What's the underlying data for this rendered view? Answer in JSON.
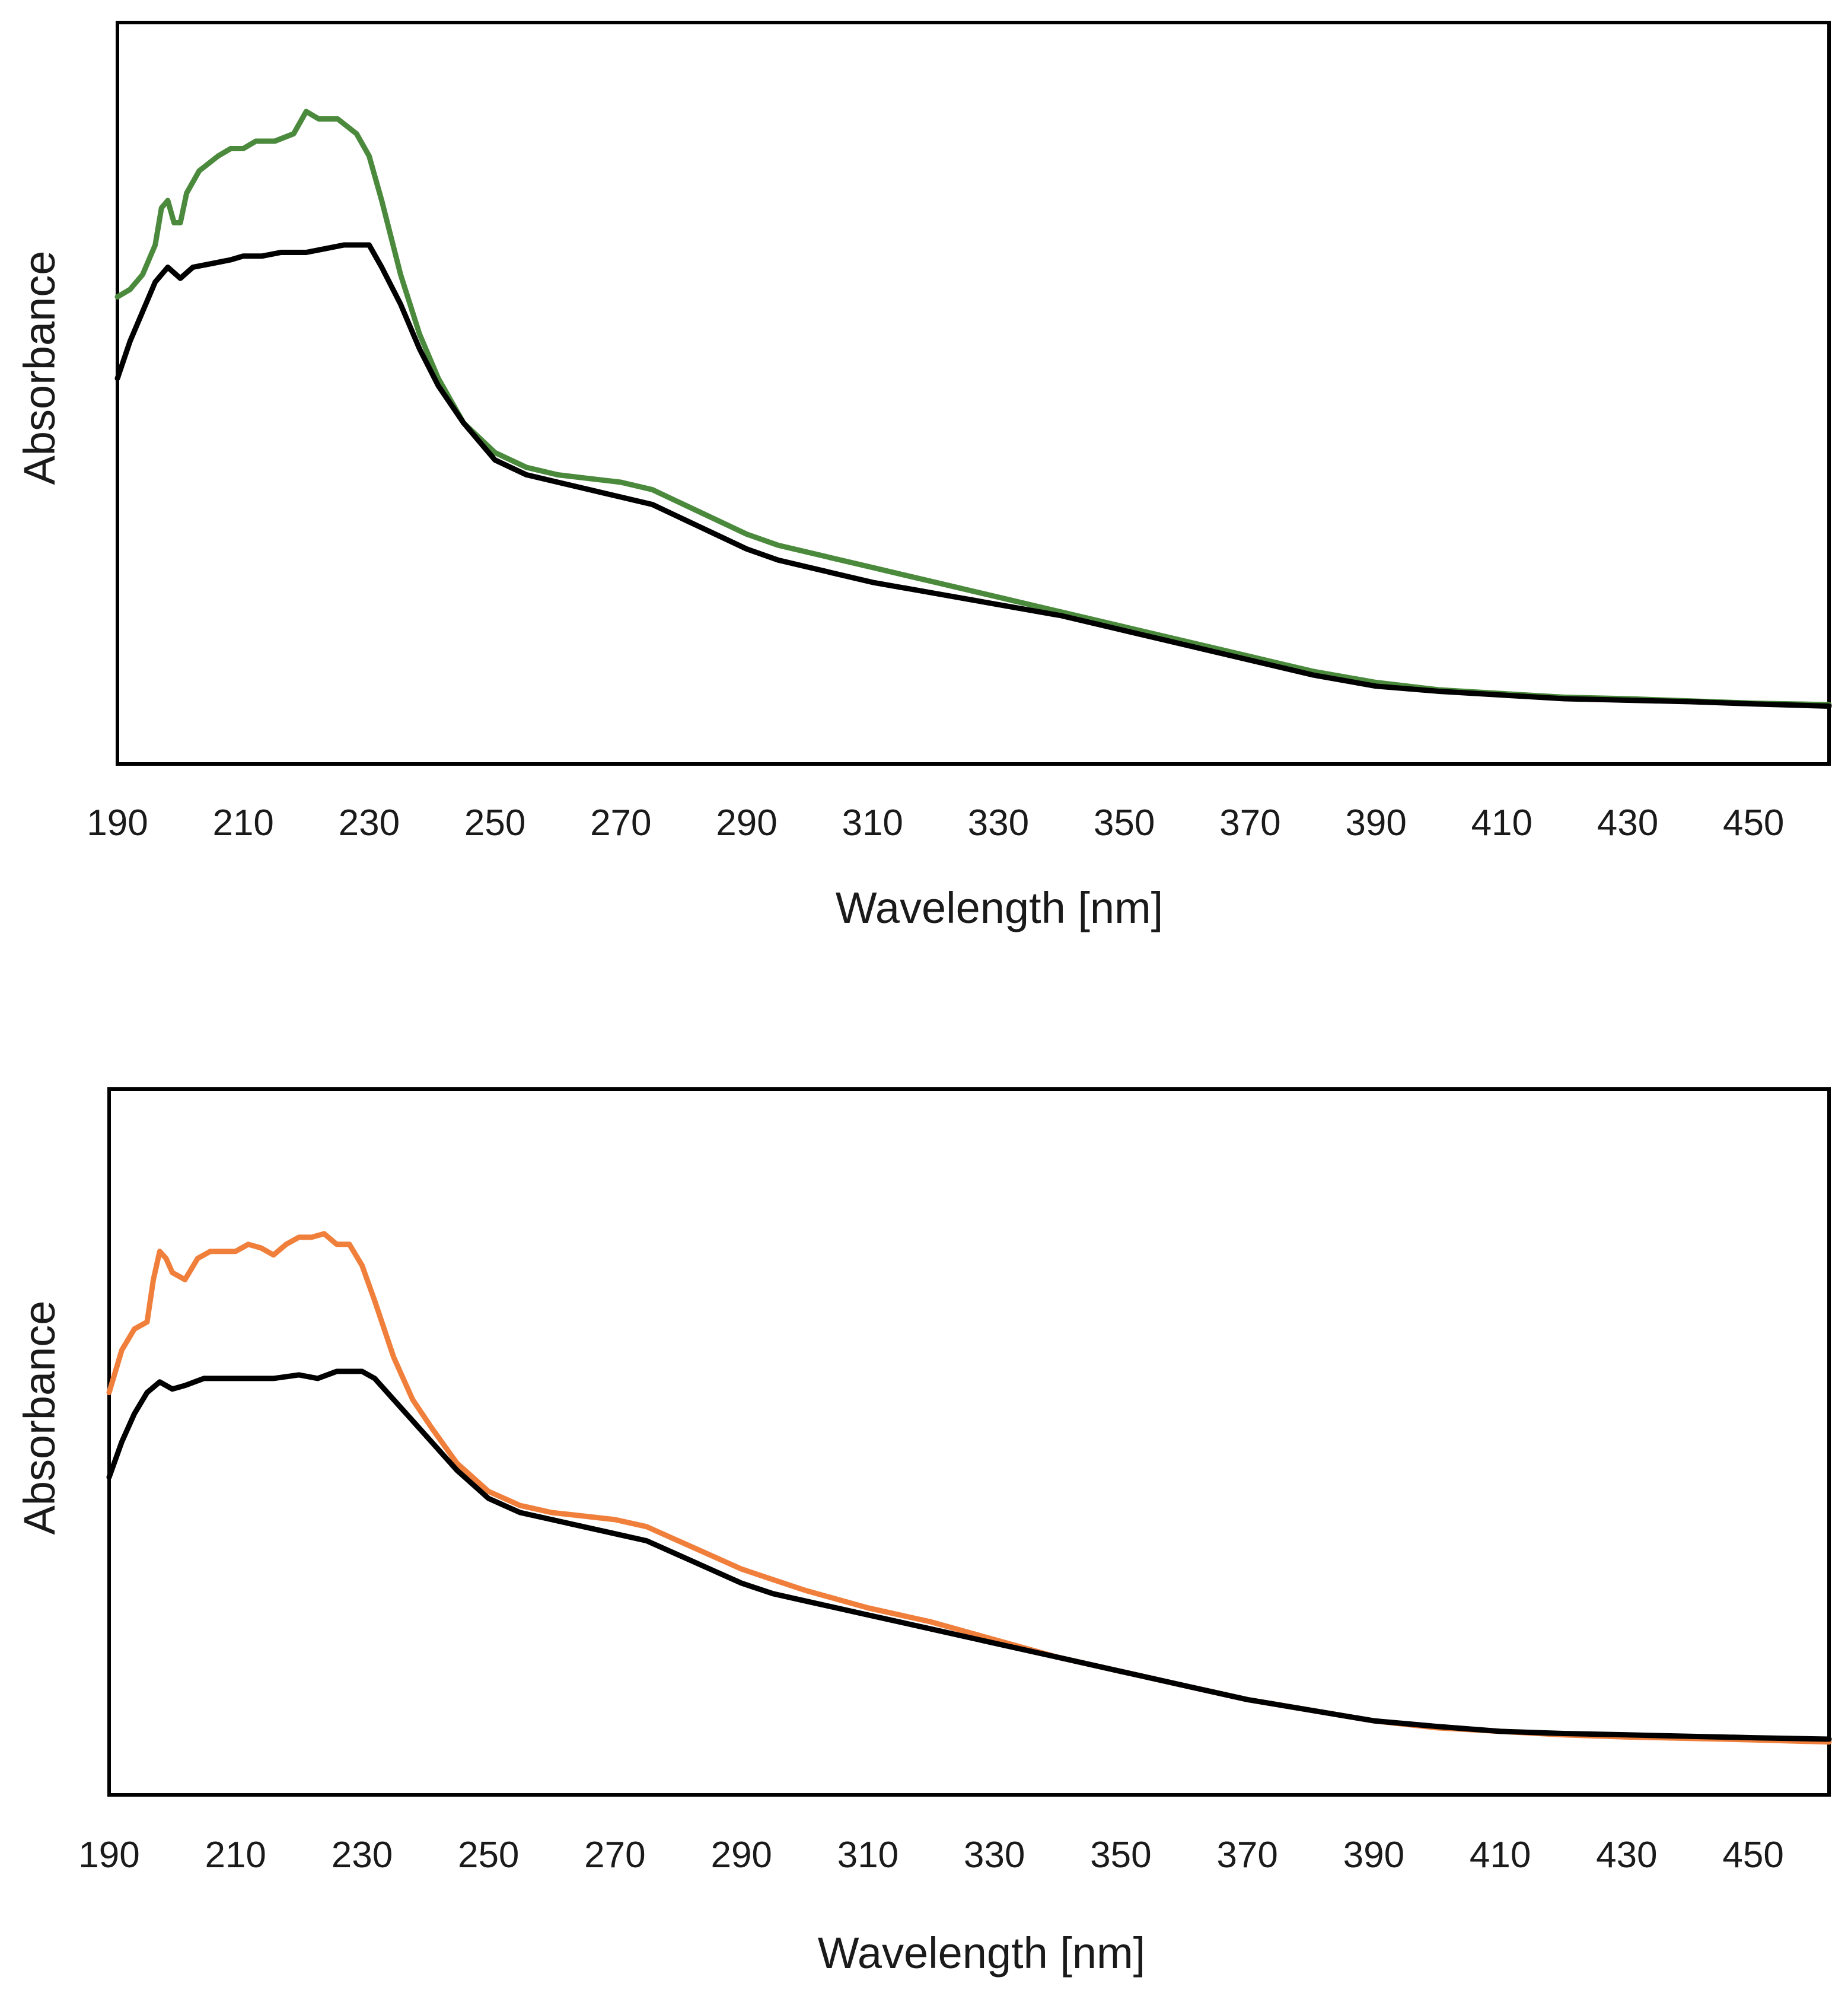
{
  "chart_data": [
    {
      "type": "line",
      "title": "",
      "xlabel": "Wavelength [nm]",
      "ylabel": "Absorbance",
      "xlim": [
        190,
        462
      ],
      "ylim": [
        0,
        1.0
      ],
      "x_ticks": [
        "190",
        "210",
        "230",
        "250",
        "270",
        "290",
        "310",
        "330",
        "350",
        "370",
        "390",
        "410",
        "430",
        "450"
      ],
      "y_ticks_shown": false,
      "grid": false,
      "legend": "none",
      "series": [
        {
          "color": "#4b8a3c",
          "points": [
            [
              190,
              0.63
            ],
            [
              192,
              0.64
            ],
            [
              194,
              0.66
            ],
            [
              196,
              0.7
            ],
            [
              197,
              0.75
            ],
            [
              198,
              0.76
            ],
            [
              199,
              0.73
            ],
            [
              200,
              0.73
            ],
            [
              201,
              0.77
            ],
            [
              203,
              0.8
            ],
            [
              206,
              0.82
            ],
            [
              208,
              0.83
            ],
            [
              210,
              0.83
            ],
            [
              212,
              0.84
            ],
            [
              215,
              0.84
            ],
            [
              218,
              0.85
            ],
            [
              220,
              0.88
            ],
            [
              222,
              0.87
            ],
            [
              225,
              0.87
            ],
            [
              228,
              0.85
            ],
            [
              230,
              0.82
            ],
            [
              232,
              0.76
            ],
            [
              235,
              0.66
            ],
            [
              238,
              0.58
            ],
            [
              241,
              0.52
            ],
            [
              245,
              0.46
            ],
            [
              250,
              0.42
            ],
            [
              255,
              0.4
            ],
            [
              260,
              0.39
            ],
            [
              265,
              0.385
            ],
            [
              270,
              0.38
            ],
            [
              275,
              0.37
            ],
            [
              280,
              0.35
            ],
            [
              285,
              0.33
            ],
            [
              290,
              0.31
            ],
            [
              295,
              0.295
            ],
            [
              300,
              0.285
            ],
            [
              310,
              0.265
            ],
            [
              320,
              0.245
            ],
            [
              330,
              0.225
            ],
            [
              340,
              0.205
            ],
            [
              350,
              0.185
            ],
            [
              360,
              0.165
            ],
            [
              370,
              0.145
            ],
            [
              380,
              0.125
            ],
            [
              390,
              0.11
            ],
            [
              400,
              0.1
            ],
            [
              410,
              0.095
            ],
            [
              420,
              0.09
            ],
            [
              430,
              0.088
            ],
            [
              440,
              0.085
            ],
            [
              450,
              0.082
            ],
            [
              462,
              0.08
            ]
          ]
        },
        {
          "color": "#000000",
          "points": [
            [
              190,
              0.52
            ],
            [
              192,
              0.57
            ],
            [
              194,
              0.61
            ],
            [
              196,
              0.65
            ],
            [
              198,
              0.67
            ],
            [
              200,
              0.655
            ],
            [
              202,
              0.67
            ],
            [
              205,
              0.675
            ],
            [
              208,
              0.68
            ],
            [
              210,
              0.685
            ],
            [
              213,
              0.685
            ],
            [
              216,
              0.69
            ],
            [
              220,
              0.69
            ],
            [
              223,
              0.695
            ],
            [
              226,
              0.7
            ],
            [
              228,
              0.7
            ],
            [
              230,
              0.7
            ],
            [
              232,
              0.67
            ],
            [
              235,
              0.62
            ],
            [
              238,
              0.56
            ],
            [
              241,
              0.51
            ],
            [
              245,
              0.46
            ],
            [
              250,
              0.41
            ],
            [
              255,
              0.39
            ],
            [
              260,
              0.38
            ],
            [
              265,
              0.37
            ],
            [
              270,
              0.36
            ],
            [
              275,
              0.35
            ],
            [
              280,
              0.33
            ],
            [
              285,
              0.31
            ],
            [
              290,
              0.29
            ],
            [
              295,
              0.275
            ],
            [
              300,
              0.265
            ],
            [
              310,
              0.245
            ],
            [
              320,
              0.23
            ],
            [
              330,
              0.215
            ],
            [
              340,
              0.2
            ],
            [
              350,
              0.18
            ],
            [
              360,
              0.16
            ],
            [
              370,
              0.14
            ],
            [
              380,
              0.12
            ],
            [
              390,
              0.105
            ],
            [
              400,
              0.098
            ],
            [
              410,
              0.093
            ],
            [
              420,
              0.088
            ],
            [
              430,
              0.086
            ],
            [
              440,
              0.084
            ],
            [
              450,
              0.081
            ],
            [
              462,
              0.078
            ]
          ]
        }
      ]
    },
    {
      "type": "line",
      "title": "",
      "xlabel": "Wavelength [nm]",
      "ylabel": "Absorbance",
      "xlim": [
        190,
        462
      ],
      "ylim": [
        0,
        1.0
      ],
      "x_ticks": [
        "190",
        "210",
        "230",
        "250",
        "270",
        "290",
        "310",
        "330",
        "350",
        "370",
        "390",
        "410",
        "430",
        "450"
      ],
      "y_ticks_shown": false,
      "grid": false,
      "legend": "none",
      "series": [
        {
          "color": "#f07f3c",
          "points": [
            [
              190,
              0.57
            ],
            [
              192,
              0.63
            ],
            [
              194,
              0.66
            ],
            [
              196,
              0.67
            ],
            [
              197,
              0.73
            ],
            [
              198,
              0.77
            ],
            [
              199,
              0.76
            ],
            [
              200,
              0.74
            ],
            [
              202,
              0.73
            ],
            [
              204,
              0.76
            ],
            [
              206,
              0.77
            ],
            [
              210,
              0.77
            ],
            [
              212,
              0.78
            ],
            [
              214,
              0.775
            ],
            [
              216,
              0.765
            ],
            [
              218,
              0.78
            ],
            [
              220,
              0.79
            ],
            [
              222,
              0.79
            ],
            [
              224,
              0.795
            ],
            [
              226,
              0.78
            ],
            [
              228,
              0.78
            ],
            [
              230,
              0.75
            ],
            [
              232,
              0.7
            ],
            [
              235,
              0.62
            ],
            [
              238,
              0.56
            ],
            [
              241,
              0.52
            ],
            [
              245,
              0.47
            ],
            [
              250,
              0.43
            ],
            [
              255,
              0.41
            ],
            [
              260,
              0.4
            ],
            [
              265,
              0.395
            ],
            [
              270,
              0.39
            ],
            [
              275,
              0.38
            ],
            [
              280,
              0.36
            ],
            [
              285,
              0.34
            ],
            [
              290,
              0.32
            ],
            [
              295,
              0.305
            ],
            [
              300,
              0.29
            ],
            [
              310,
              0.265
            ],
            [
              320,
              0.245
            ],
            [
              330,
              0.22
            ],
            [
              340,
              0.195
            ],
            [
              350,
              0.175
            ],
            [
              360,
              0.155
            ],
            [
              370,
              0.135
            ],
            [
              380,
              0.12
            ],
            [
              390,
              0.105
            ],
            [
              400,
              0.095
            ],
            [
              410,
              0.09
            ],
            [
              420,
              0.085
            ],
            [
              430,
              0.082
            ],
            [
              440,
              0.08
            ],
            [
              450,
              0.078
            ],
            [
              462,
              0.075
            ]
          ]
        },
        {
          "color": "#000000",
          "points": [
            [
              190,
              0.45
            ],
            [
              192,
              0.5
            ],
            [
              194,
              0.54
            ],
            [
              196,
              0.57
            ],
            [
              198,
              0.585
            ],
            [
              200,
              0.575
            ],
            [
              202,
              0.58
            ],
            [
              205,
              0.59
            ],
            [
              208,
              0.59
            ],
            [
              210,
              0.59
            ],
            [
              213,
              0.59
            ],
            [
              216,
              0.59
            ],
            [
              220,
              0.595
            ],
            [
              223,
              0.59
            ],
            [
              226,
              0.6
            ],
            [
              228,
              0.6
            ],
            [
              230,
              0.6
            ],
            [
              232,
              0.59
            ],
            [
              235,
              0.56
            ],
            [
              238,
              0.53
            ],
            [
              241,
              0.5
            ],
            [
              245,
              0.46
            ],
            [
              250,
              0.42
            ],
            [
              255,
              0.4
            ],
            [
              260,
              0.39
            ],
            [
              265,
              0.38
            ],
            [
              270,
              0.37
            ],
            [
              275,
              0.36
            ],
            [
              280,
              0.34
            ],
            [
              285,
              0.32
            ],
            [
              290,
              0.3
            ],
            [
              295,
              0.285
            ],
            [
              300,
              0.275
            ],
            [
              310,
              0.255
            ],
            [
              320,
              0.235
            ],
            [
              330,
              0.215
            ],
            [
              340,
              0.195
            ],
            [
              350,
              0.175
            ],
            [
              360,
              0.155
            ],
            [
              370,
              0.135
            ],
            [
              380,
              0.12
            ],
            [
              390,
              0.105
            ],
            [
              400,
              0.097
            ],
            [
              410,
              0.09
            ],
            [
              420,
              0.087
            ],
            [
              430,
              0.085
            ],
            [
              440,
              0.083
            ],
            [
              450,
              0.081
            ],
            [
              462,
              0.079
            ]
          ]
        }
      ]
    }
  ]
}
